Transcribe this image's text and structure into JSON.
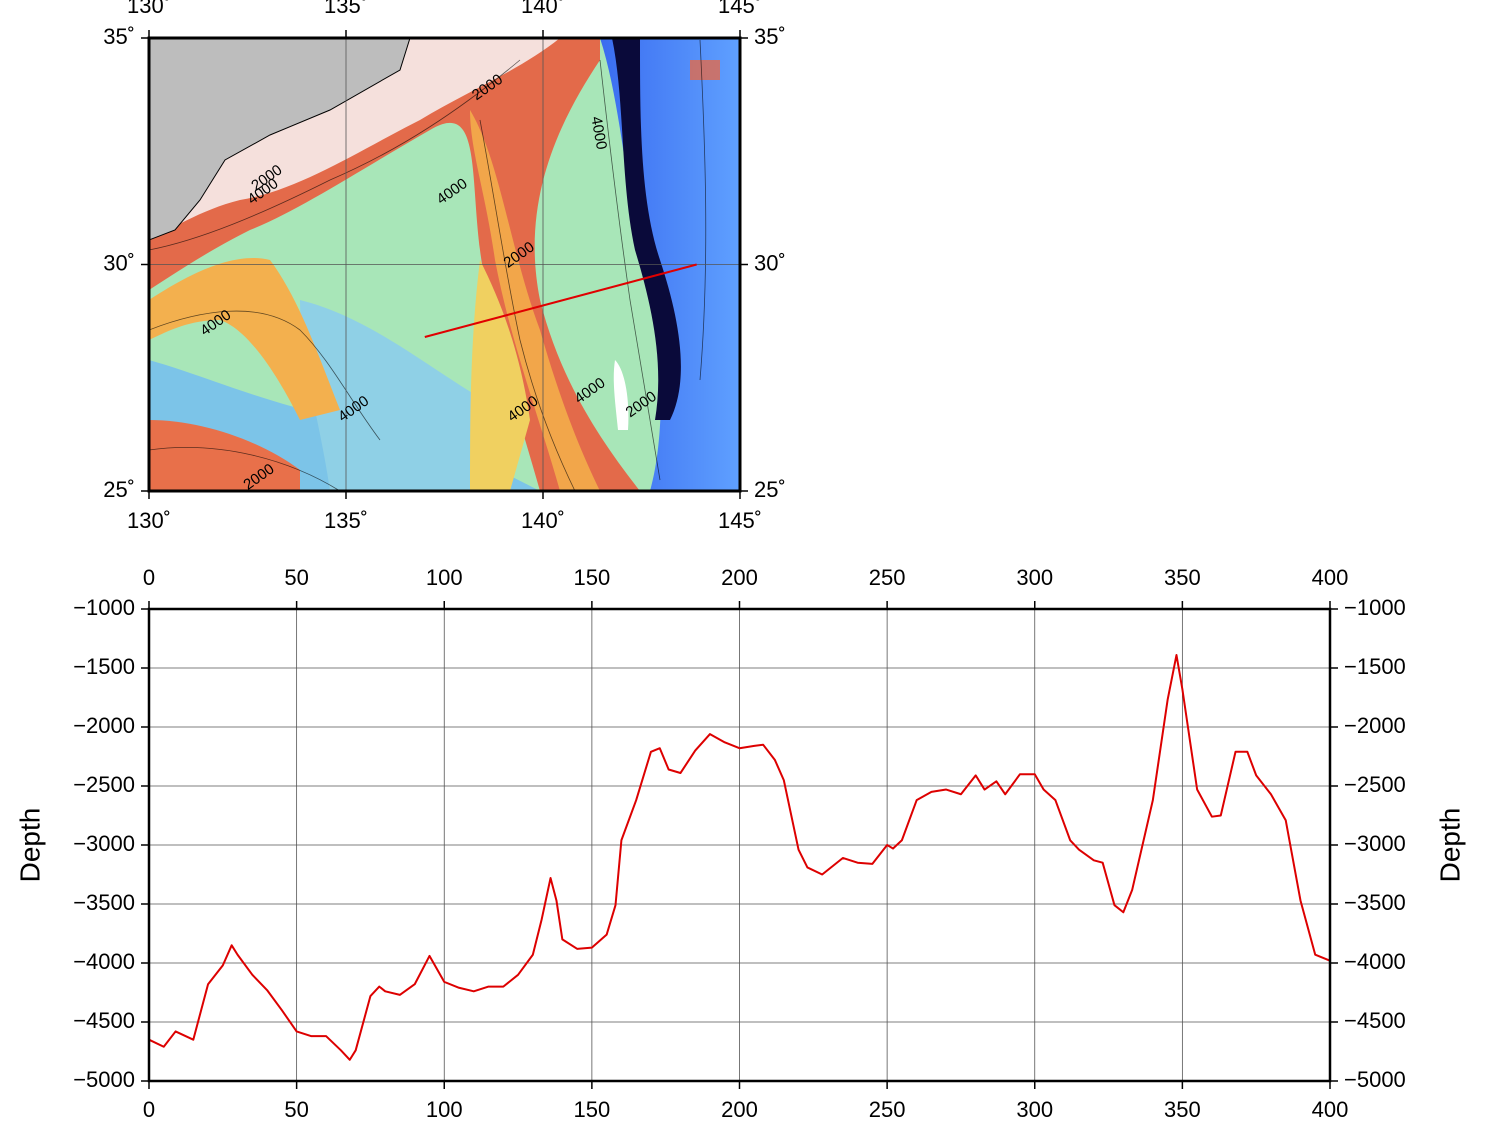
{
  "chart_data": [
    {
      "type": "map",
      "xlim": [
        130,
        145
      ],
      "ylim": [
        25,
        35
      ],
      "xticks": [
        {
          "value": 130,
          "label": "130˚"
        },
        {
          "value": 135,
          "label": "135˚"
        },
        {
          "value": 140,
          "label": "140˚"
        },
        {
          "value": 145,
          "label": "145˚"
        }
      ],
      "yticks": [
        {
          "value": 25,
          "label": "25˚"
        },
        {
          "value": 30,
          "label": "30˚"
        },
        {
          "value": 35,
          "label": "35˚"
        }
      ],
      "grid": true,
      "series": [
        {
          "color": "#e00000",
          "x": [
            137.0,
            143.9
          ],
          "values": [
            28.4,
            30.0
          ]
        }
      ],
      "annotations": [
        {
          "text": "2000",
          "x": 138.6,
          "y": 33.9
        },
        {
          "text": "4000",
          "x": 141.4,
          "y": 32.9
        },
        {
          "text": "2000",
          "x": 133.0,
          "y": 31.9
        },
        {
          "text": "4000",
          "x": 132.9,
          "y": 31.6
        },
        {
          "text": "4000",
          "x": 137.7,
          "y": 31.6
        },
        {
          "text": "2000",
          "x": 139.4,
          "y": 30.2
        },
        {
          "text": "4000",
          "x": 131.7,
          "y": 28.7
        },
        {
          "text": "4000",
          "x": 135.2,
          "y": 26.8
        },
        {
          "text": "4000",
          "x": 139.5,
          "y": 26.8
        },
        {
          "text": "4000",
          "x": 141.2,
          "y": 27.2
        },
        {
          "text": "2000",
          "x": 132.8,
          "y": 25.3
        },
        {
          "text": "2000",
          "x": 142.5,
          "y": 26.9
        }
      ]
    },
    {
      "type": "line",
      "ylabel": "Depth",
      "xlim": [
        0,
        400
      ],
      "ylim": [
        -5000,
        -1000
      ],
      "xticks": [
        0,
        50,
        100,
        150,
        200,
        250,
        300,
        350,
        400
      ],
      "yticks": [
        {
          "value": -1000,
          "label": "−1000"
        },
        {
          "value": -1500,
          "label": "−1500"
        },
        {
          "value": -2000,
          "label": "−2000"
        },
        {
          "value": -2500,
          "label": "−2500"
        },
        {
          "value": -3000,
          "label": "−3000"
        },
        {
          "value": -3500,
          "label": "−3500"
        },
        {
          "value": -4000,
          "label": "−4000"
        },
        {
          "value": -4500,
          "label": "−4500"
        },
        {
          "value": -5000,
          "label": "−5000"
        }
      ],
      "grid": true,
      "x": [
        0,
        5,
        9,
        15,
        20,
        25,
        28,
        30,
        35,
        40,
        45,
        50,
        55,
        60,
        65,
        68,
        70,
        75,
        78,
        80,
        85,
        90,
        95,
        100,
        105,
        110,
        115,
        120,
        125,
        130,
        133,
        136,
        138,
        140,
        145,
        150,
        155,
        158,
        160,
        165,
        170,
        173,
        176,
        180,
        185,
        190,
        195,
        200,
        205,
        208,
        212,
        215,
        220,
        223,
        228,
        235,
        240,
        245,
        250,
        252,
        255,
        260,
        265,
        270,
        275,
        280,
        283,
        287,
        290,
        295,
        300,
        303,
        307,
        312,
        315,
        320,
        323,
        327,
        330,
        333,
        340,
        345,
        348,
        350,
        355,
        360,
        363,
        368,
        372,
        375,
        380,
        385,
        390,
        395,
        400
      ],
      "series": [
        {
          "color": "#dd0000",
          "values": [
            -4650,
            -4710,
            -4580,
            -4650,
            -4180,
            -4020,
            -3850,
            -3930,
            -4100,
            -4230,
            -4400,
            -4580,
            -4620,
            -4620,
            -4740,
            -4820,
            -4740,
            -4280,
            -4200,
            -4240,
            -4270,
            -4180,
            -3940,
            -4160,
            -4210,
            -4240,
            -4200,
            -4200,
            -4100,
            -3930,
            -3630,
            -3280,
            -3470,
            -3800,
            -3880,
            -3870,
            -3760,
            -3510,
            -2960,
            -2620,
            -2210,
            -2180,
            -2360,
            -2390,
            -2200,
            -2060,
            -2130,
            -2180,
            -2160,
            -2150,
            -2280,
            -2450,
            -3040,
            -3190,
            -3250,
            -3110,
            -3150,
            -3160,
            -3000,
            -3030,
            -2960,
            -2620,
            -2550,
            -2530,
            -2570,
            -2410,
            -2530,
            -2460,
            -2570,
            -2400,
            -2400,
            -2530,
            -2620,
            -2960,
            -3040,
            -3130,
            -3150,
            -3510,
            -3570,
            -3380,
            -2620,
            -1770,
            -1390,
            -1680,
            -2530,
            -2760,
            -2750,
            -2210,
            -2210,
            -2410,
            -2570,
            -2790,
            -3470,
            -3930,
            -3980
          ]
        }
      ]
    }
  ]
}
